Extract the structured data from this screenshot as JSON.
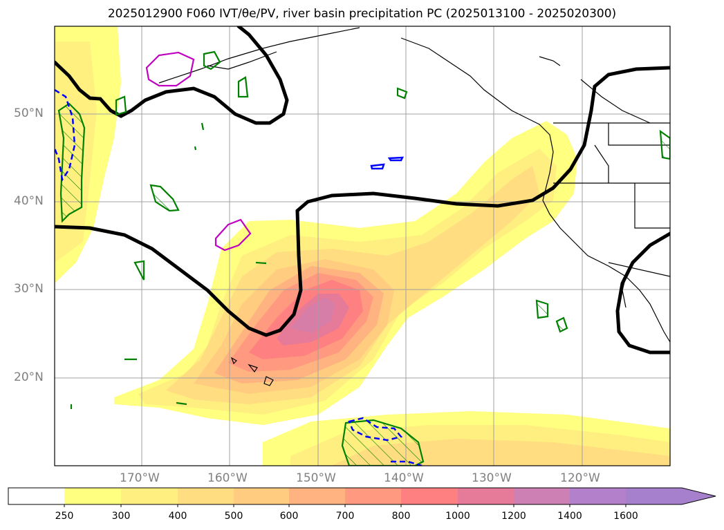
{
  "title": "2025012900 F060 IVT/θe/PV, river basin precipitation PC (2025013100 - 2025020300)",
  "map": {
    "lat_labels": [
      "50°N",
      "40°N",
      "30°N",
      "20°N"
    ],
    "lon_labels": [
      "170°W",
      "160°W",
      "150°W",
      "140°W",
      "130°W",
      "120°W"
    ]
  },
  "colorbar": {
    "levels": [
      "250",
      "300",
      "400",
      "500",
      "600",
      "700",
      "800",
      "1000",
      "1200",
      "1400",
      "1600"
    ],
    "colors": [
      "#ffffff",
      "#ffff80",
      "#ffee80",
      "#ffdd80",
      "#ffcc80",
      "#ffb380",
      "#ff9980",
      "#ff8080",
      "#e67a99",
      "#cc80b3",
      "#b380cc",
      "#a680cc"
    ]
  },
  "colors": {
    "ivt_contour": "#000000",
    "pv_positive": "#008000",
    "pv_negative": "#0000ff",
    "theta_contour": "#c000c0"
  }
}
